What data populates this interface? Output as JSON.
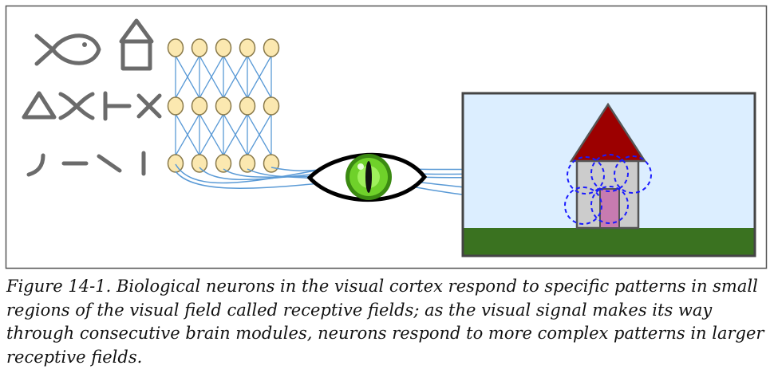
{
  "caption": {
    "label": "Figure 14-1.",
    "text": "Biological neurons in the visual cortex respond to specific patterns in small regions of the visual field called receptive fields; as the visual signal makes its way through consecutive brain modules, neurons respond to more complex patterns in larger receptive fields."
  },
  "colors": {
    "frame": "#555555",
    "glyph": "#6b6b6b",
    "neuron_fill": "#fbe8b0",
    "neuron_stroke": "#8a7a4a",
    "connection": "#5a9ad6",
    "eye_iris": "#6fd12a",
    "sky": "#dceeff",
    "ground": "#3a7220",
    "roof": "#9c0000",
    "wall": "#cccccc",
    "door": "#c77bb0",
    "receptive_field": "#1a1aff"
  },
  "icons": [
    "fish-icon",
    "house-icon",
    "triangle-icon",
    "curly-x-icon",
    "t-bar-icon",
    "x-icon",
    "curve-stroke-icon",
    "horizontal-stroke-icon",
    "diagonal-stroke-icon",
    "vertical-stroke-icon",
    "eye-icon"
  ]
}
